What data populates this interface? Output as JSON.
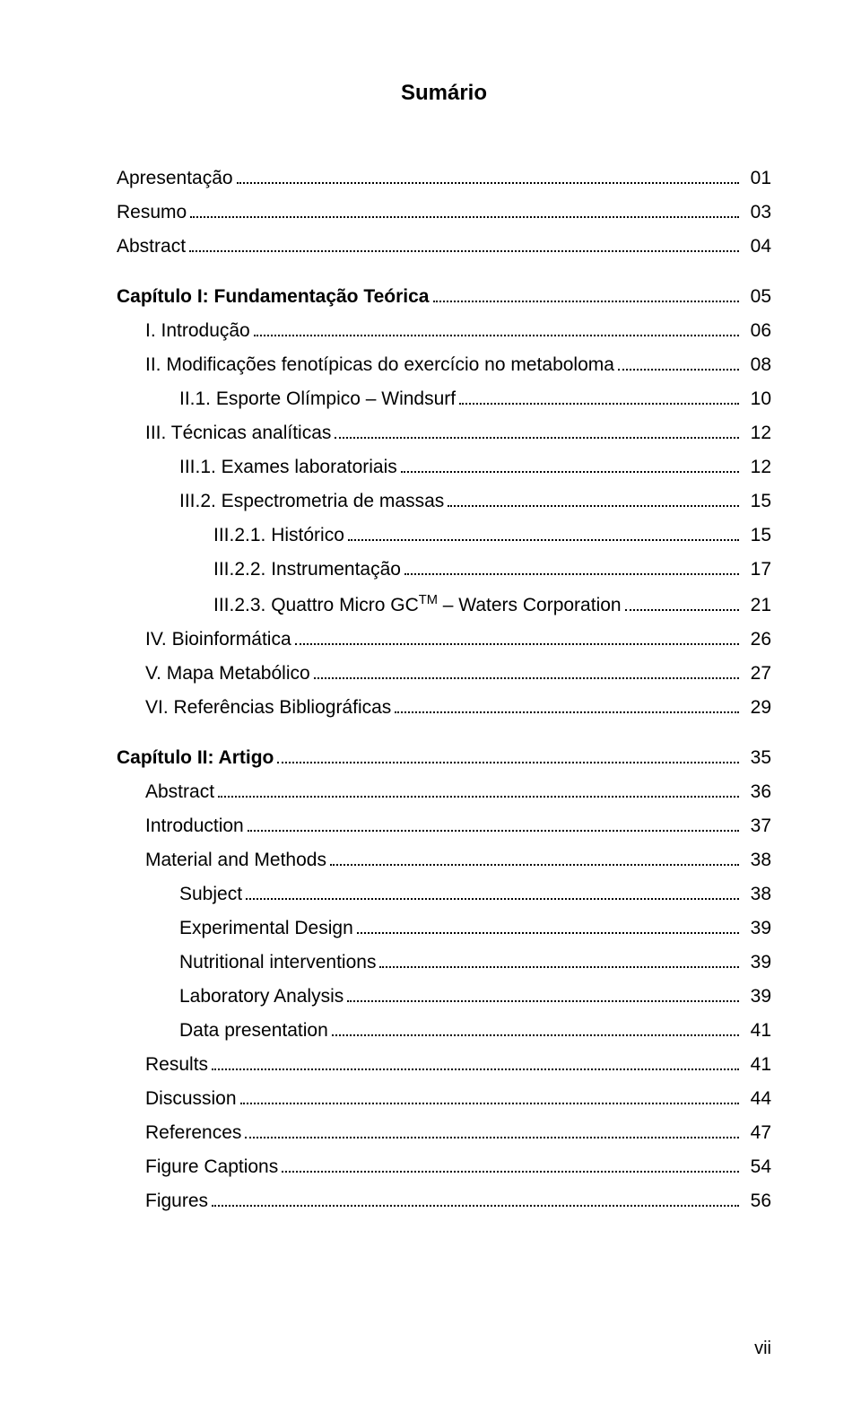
{
  "title": "Sumário",
  "footer": "vii",
  "toc": [
    {
      "label": "Apresentação",
      "page": "01",
      "bold": false,
      "indent": 0,
      "spaced": false,
      "html": false
    },
    {
      "label": "Resumo",
      "page": "03",
      "bold": false,
      "indent": 0,
      "spaced": false,
      "html": false
    },
    {
      "label": "Abstract",
      "page": "04",
      "bold": false,
      "indent": 0,
      "spaced": false,
      "html": false
    },
    {
      "label": "Capítulo I: Fundamentação Teórica",
      "page": "05",
      "bold": true,
      "indent": 0,
      "spaced": true,
      "html": false
    },
    {
      "label": "I. Introdução",
      "page": "06",
      "bold": false,
      "indent": 1,
      "spaced": false,
      "html": false
    },
    {
      "label": "II. Modificações fenotípicas do exercício no metaboloma",
      "page": "08",
      "bold": false,
      "indent": 1,
      "spaced": false,
      "html": false
    },
    {
      "label": "II.1. Esporte Olímpico – Windsurf",
      "page": "10",
      "bold": false,
      "indent": 2,
      "spaced": false,
      "html": false
    },
    {
      "label": "III. Técnicas analíticas",
      "page": "12",
      "bold": false,
      "indent": 1,
      "spaced": false,
      "html": false
    },
    {
      "label": "III.1. Exames laboratoriais",
      "page": "12",
      "bold": false,
      "indent": 2,
      "spaced": false,
      "html": false
    },
    {
      "label": "III.2. Espectrometria de massas",
      "page": "15",
      "bold": false,
      "indent": 2,
      "spaced": false,
      "html": false
    },
    {
      "label": "III.2.1. Histórico",
      "page": "15",
      "bold": false,
      "indent": 3,
      "spaced": false,
      "html": false
    },
    {
      "label": "III.2.2. Instrumentação",
      "page": "17",
      "bold": false,
      "indent": 3,
      "spaced": false,
      "html": false
    },
    {
      "label": "III.2.3. Quattro Micro GC<span class=\"sup\">TM</span> – Waters Corporation",
      "page": "21",
      "bold": false,
      "indent": 3,
      "spaced": false,
      "html": true
    },
    {
      "label": "IV. Bioinformática",
      "page": "26",
      "bold": false,
      "indent": 1,
      "spaced": false,
      "html": false
    },
    {
      "label": "V. Mapa Metabólico",
      "page": "27",
      "bold": false,
      "indent": 1,
      "spaced": false,
      "html": false
    },
    {
      "label": "VI. Referências Bibliográficas",
      "page": "29",
      "bold": false,
      "indent": 1,
      "spaced": false,
      "html": false
    },
    {
      "label": "Capítulo II: Artigo",
      "page": "35",
      "bold": true,
      "indent": 0,
      "spaced": true,
      "html": false
    },
    {
      "label": "Abstract",
      "page": "36",
      "bold": false,
      "indent": 1,
      "spaced": false,
      "html": false
    },
    {
      "label": "Introduction",
      "page": "37",
      "bold": false,
      "indent": 1,
      "spaced": false,
      "html": false
    },
    {
      "label": "Material and Methods",
      "page": "38",
      "bold": false,
      "indent": 1,
      "spaced": false,
      "html": false
    },
    {
      "label": "Subject",
      "page": "38",
      "bold": false,
      "indent": 2,
      "spaced": false,
      "html": false
    },
    {
      "label": "Experimental Design",
      "page": "39",
      "bold": false,
      "indent": 2,
      "spaced": false,
      "html": false
    },
    {
      "label": "Nutritional interventions",
      "page": "39",
      "bold": false,
      "indent": 2,
      "spaced": false,
      "html": false
    },
    {
      "label": "Laboratory Analysis",
      "page": "39",
      "bold": false,
      "indent": 2,
      "spaced": false,
      "html": false
    },
    {
      "label": "Data presentation",
      "page": "41",
      "bold": false,
      "indent": 2,
      "spaced": false,
      "html": false
    },
    {
      "label": "Results",
      "page": "41",
      "bold": false,
      "indent": 1,
      "spaced": false,
      "html": false
    },
    {
      "label": "Discussion",
      "page": "44",
      "bold": false,
      "indent": 1,
      "spaced": false,
      "html": false
    },
    {
      "label": "References",
      "page": "47",
      "bold": false,
      "indent": 1,
      "spaced": false,
      "html": false
    },
    {
      "label": "Figure Captions",
      "page": "54",
      "bold": false,
      "indent": 1,
      "spaced": false,
      "html": false
    },
    {
      "label": "Figures",
      "page": "56",
      "bold": false,
      "indent": 1,
      "spaced": false,
      "html": false
    }
  ]
}
